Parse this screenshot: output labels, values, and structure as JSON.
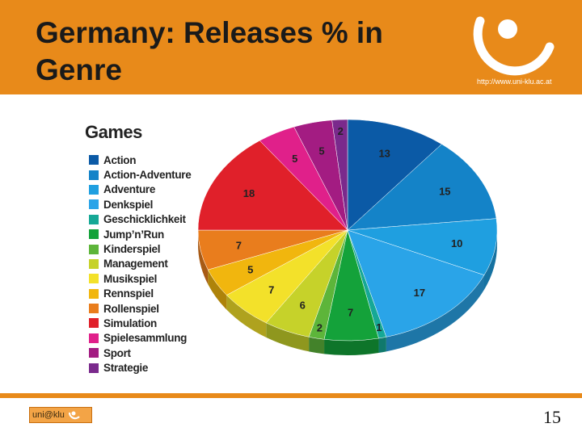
{
  "slide": {
    "title": "Germany: Releases % in Genre",
    "url": "http://www.uni-klu.ac.at",
    "footer_logo_text": "uni@klu",
    "page_number": "15",
    "accent_color": "#e88a1a"
  },
  "chart_data": {
    "type": "pie",
    "title": "Games",
    "legend_position": "left",
    "categories": [
      "Action",
      "Action-Adventure",
      "Adventure",
      "Denkspiel",
      "Geschicklichkeit",
      "Jump’n’Run",
      "Kinderspiel",
      "Management",
      "Musikspiel",
      "Rennspiel",
      "Rollenspiel",
      "Simulation",
      "Spielesammlung",
      "Sport",
      "Strategie"
    ],
    "values": [
      13,
      15,
      10,
      17,
      1,
      7,
      2,
      6,
      7,
      5,
      7,
      18,
      5,
      5,
      2
    ],
    "colors": [
      "#0b5aa6",
      "#1483c8",
      "#1f9fe0",
      "#2aa4e8",
      "#16a896",
      "#14a23a",
      "#5db53a",
      "#c6d22a",
      "#f3e12a",
      "#f1b60e",
      "#e97d1d",
      "#e0202a",
      "#e0208a",
      "#a31c82",
      "#7a2a8c"
    ]
  }
}
